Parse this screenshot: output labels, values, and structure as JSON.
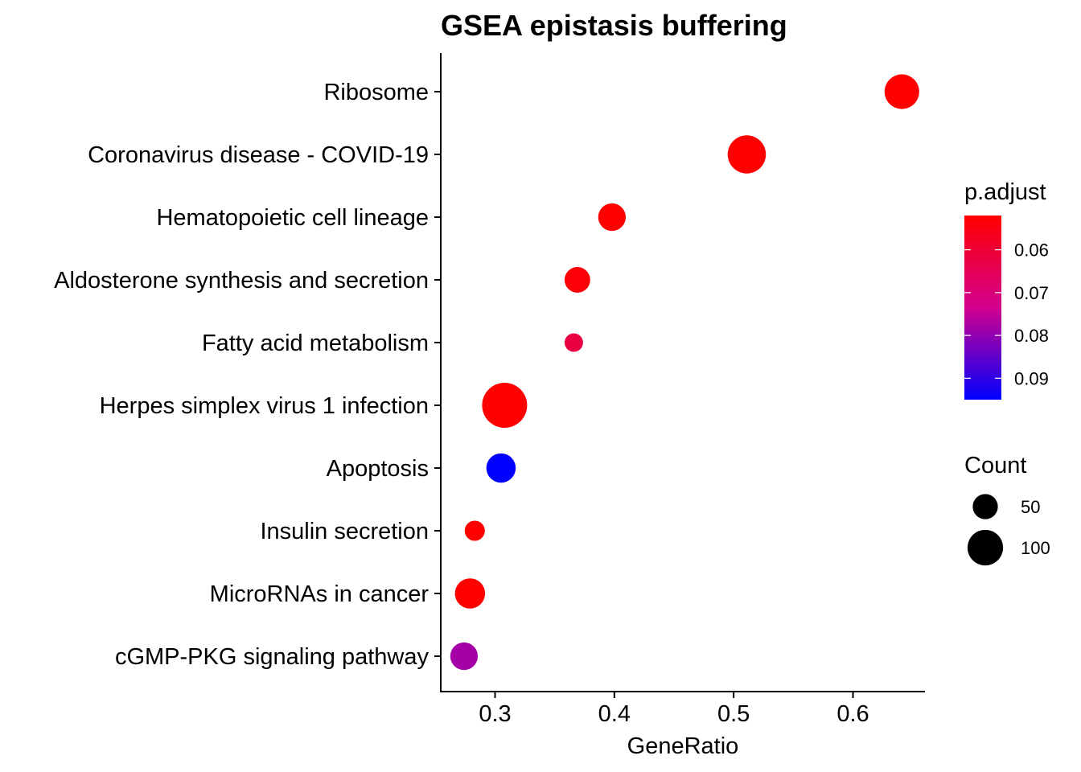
{
  "chart_data": {
    "type": "scatter",
    "title": "GSEA epistasis buffering",
    "xlabel": "GeneRatio",
    "ylabel": "",
    "xlim": [
      0.255,
      0.66
    ],
    "xticks": [
      0.3,
      0.4,
      0.5,
      0.6
    ],
    "xtick_labels": [
      "0.3",
      "0.4",
      "0.5",
      "0.6"
    ],
    "grid": false,
    "categories": [
      "Ribosome",
      "Coronavirus disease - COVID-19",
      "Hematopoietic cell lineage",
      "Aldosterone synthesis and secretion",
      "Fatty acid metabolism",
      "Herpes simplex virus 1 infection",
      "Apoptosis",
      "Insulin secretion",
      "MicroRNAs in cancer",
      "cGMP-PKG signaling pathway"
    ],
    "points": [
      {
        "term": "Ribosome",
        "gene_ratio": 0.641,
        "count": 95,
        "p_adjust": 0.052
      },
      {
        "term": "Coronavirus disease - COVID-19",
        "gene_ratio": 0.511,
        "count": 115,
        "p_adjust": 0.052
      },
      {
        "term": "Hematopoietic cell lineage",
        "gene_ratio": 0.398,
        "count": 60,
        "p_adjust": 0.052
      },
      {
        "term": "Aldosterone synthesis and secretion",
        "gene_ratio": 0.369,
        "count": 52,
        "p_adjust": 0.053
      },
      {
        "term": "Fatty acid metabolism",
        "gene_ratio": 0.366,
        "count": 27,
        "p_adjust": 0.062
      },
      {
        "term": "Herpes simplex virus 1 infection",
        "gene_ratio": 0.308,
        "count": 160,
        "p_adjust": 0.052
      },
      {
        "term": "Apoptosis",
        "gene_ratio": 0.305,
        "count": 68,
        "p_adjust": 0.095
      },
      {
        "term": "Insulin secretion",
        "gene_ratio": 0.283,
        "count": 32,
        "p_adjust": 0.052
      },
      {
        "term": "MicroRNAs in cancer",
        "gene_ratio": 0.279,
        "count": 72,
        "p_adjust": 0.052
      },
      {
        "term": "cGMP-PKG signaling pathway",
        "gene_ratio": 0.274,
        "count": 60,
        "p_adjust": 0.078
      }
    ],
    "color_legend": {
      "title": "p.adjust",
      "range": [
        0.052,
        0.095
      ],
      "low_color": "#FF0000",
      "high_color": "#0000FF",
      "ticks": [
        0.06,
        0.07,
        0.08,
        0.09
      ],
      "tick_labels": [
        "0.06",
        "0.07",
        "0.08",
        "0.09"
      ]
    },
    "size_legend": {
      "title": "Count",
      "values": [
        50,
        100
      ],
      "labels": [
        "50",
        "100"
      ],
      "color": "#000000"
    },
    "legend_position": "right"
  }
}
